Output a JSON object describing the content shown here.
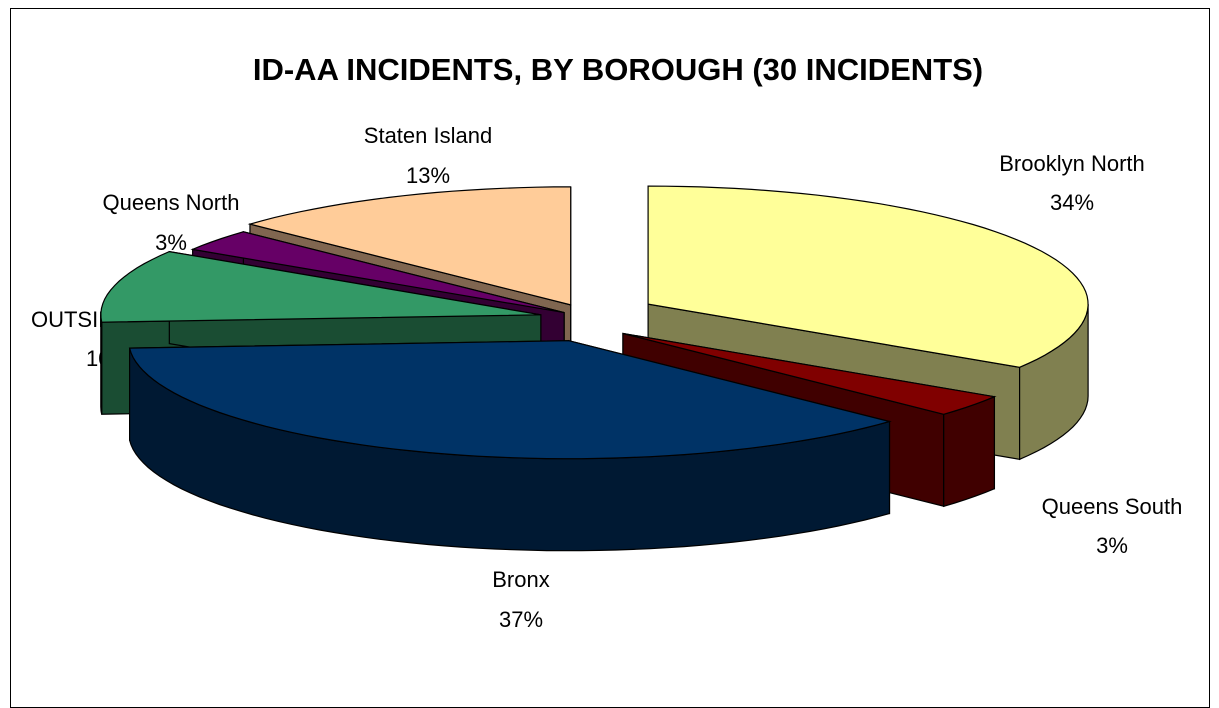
{
  "chart_data": {
    "type": "pie",
    "title": "ID-AA INCIDENTS, BY BOROUGH (30 INCIDENTS)",
    "three_d": true,
    "exploded": true,
    "legend": "none",
    "slices": [
      {
        "name": "Brooklyn North",
        "percent_label": "34%",
        "value": 34,
        "color": "#FFFF99",
        "side_color": "#808050"
      },
      {
        "name": "Queens South",
        "percent_label": "3%",
        "value": 3,
        "color": "#800000",
        "side_color": "#400000"
      },
      {
        "name": "Bronx",
        "percent_label": "37%",
        "value": 37,
        "color": "#003366",
        "side_color": "#001933"
      },
      {
        "name": "OUTSIDE CITY",
        "percent_label": "10%",
        "value": 10,
        "color": "#339966",
        "side_color": "#1A4D33"
      },
      {
        "name": "Queens North",
        "percent_label": "3%",
        "value": 3,
        "color": "#660066",
        "side_color": "#330033"
      },
      {
        "name": "Staten Island",
        "percent_label": "13%",
        "value": 13,
        "color": "#FFCC99",
        "side_color": "#806650"
      }
    ]
  }
}
